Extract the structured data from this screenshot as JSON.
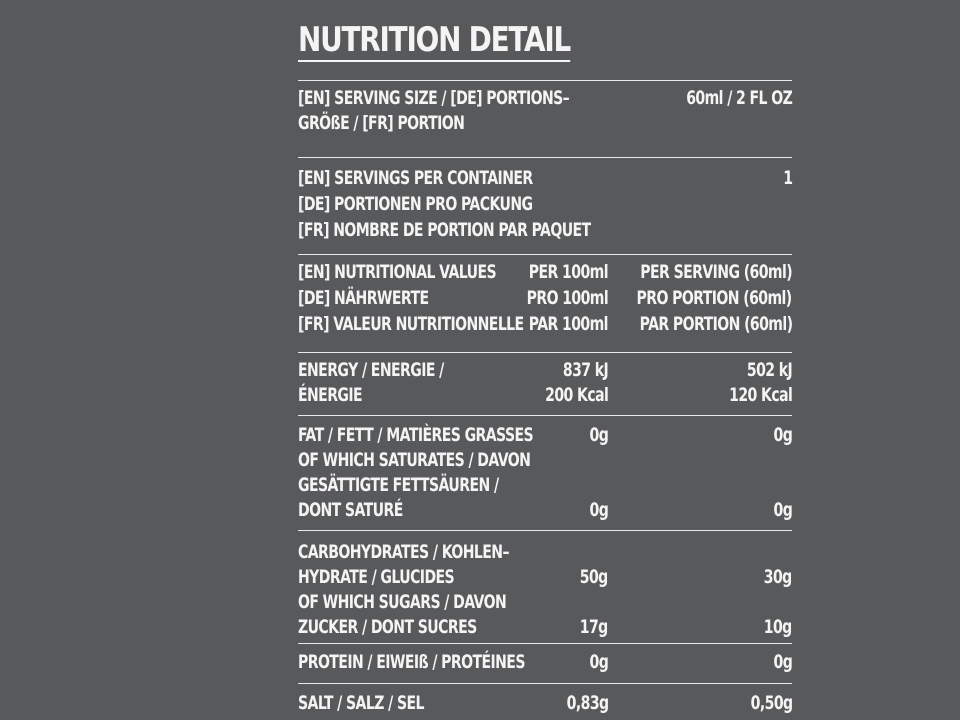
{
  "title": "NUTRITION DETAIL",
  "serving_size": {
    "label_lines": [
      "[EN] SERVING SIZE / [DE] PORTIONS–",
      "GRÖßE / [FR] PORTION"
    ],
    "value": "60ml / 2 FL OZ"
  },
  "servings_per_container": {
    "label_lines": [
      "[EN] SERVINGS PER CONTAINER",
      "[DE] PORTIONEN PRO PACKUNG",
      "[FR] NOMBRE DE PORTION PAR PAQUET"
    ],
    "value": "1"
  },
  "header": {
    "label_lines": [
      "[EN] NUTRITIONAL VALUES",
      "[DE] NÄHRWERTE",
      "[FR] VALEUR NUTRITIONNELLE"
    ],
    "per100_lines": [
      "PER 100ml",
      "PRO 100ml",
      "PAR 100ml"
    ],
    "serving_lines": [
      "PER SERVING (60ml)",
      "PRO PORTION (60ml)",
      "PAR PORTION (60ml)"
    ]
  },
  "energy": {
    "label_lines": [
      "ENERGY / ENERGIE /",
      "ÉNERGIE"
    ],
    "per100_lines": [
      "837 kJ",
      "200 Kcal"
    ],
    "serving_lines": [
      "502 kJ",
      "120 Kcal"
    ]
  },
  "fat": {
    "label_lines": [
      "FAT / FETT / MATIÈRES GRASSES",
      "OF WHICH SATURATES / DAVON",
      "GESÄTTIGTE FETTSÄUREN /",
      "DONT SATURÉ"
    ],
    "total_per100": "0g",
    "total_serving": "0g",
    "saturates_per100": "0g",
    "saturates_serving": "0g"
  },
  "carbohydrates": {
    "label_lines": [
      "CARBOHYDRATES / KOHLEN–",
      "HYDRATE / GLUCIDES",
      "OF WHICH SUGARS / DAVON",
      "ZUCKER / DONT SUCRES"
    ],
    "total_per100": "50g",
    "total_serving": "30g",
    "sugars_per100": "17g",
    "sugars_serving": "10g"
  },
  "protein": {
    "label": "PROTEIN / EIWEIß / PROTÉINES",
    "per100": "0g",
    "serving": "0g"
  },
  "salt": {
    "label": "SALT / SALZ / SEL",
    "per100": "0,83g",
    "serving": "0,50g"
  }
}
